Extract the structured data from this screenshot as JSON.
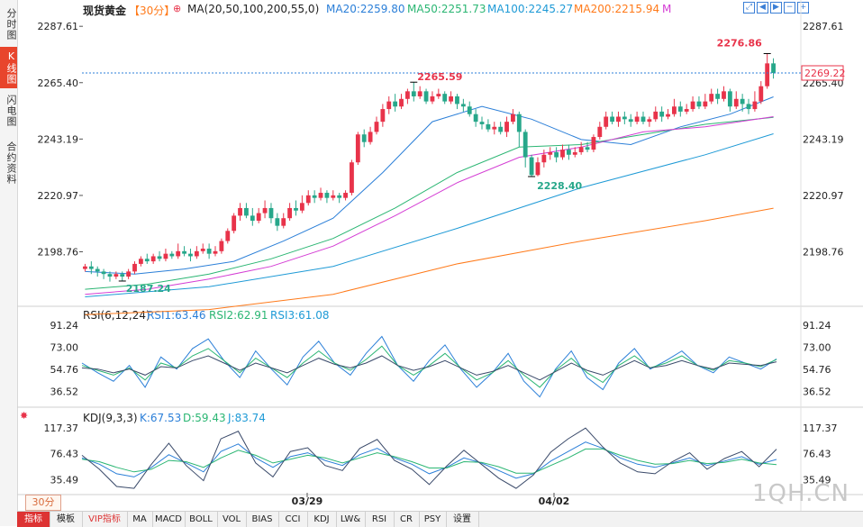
{
  "sidebar": {
    "tabs": [
      {
        "label": "分时图",
        "active": false
      },
      {
        "label": "K线图",
        "active": true
      },
      {
        "label": "闪电图",
        "active": false
      },
      {
        "label": "合约资料",
        "active": false
      }
    ]
  },
  "header": {
    "title": "现货黄金",
    "period": "【30分】",
    "ma_def": "MA(20,50,100,200,55,0)",
    "ma20": "MA20:2259.80",
    "ma50": "MA50:2251.73",
    "ma100": "MA100:2245.27",
    "ma200": "MA200:2215.94",
    "ma_tail": "M"
  },
  "rsi_header": {
    "title": "RSI(6,12,24)",
    "r1": "RSI1:63.46",
    "r2": "RSI2:62.91",
    "r3": "RSI3:61.08"
  },
  "kdj_header": {
    "title": "KDJ(9,3,3)",
    "k": "K:67.53",
    "d": "D:59.43",
    "j": "J:83.74"
  },
  "price_labels": {
    "high": "2276.86",
    "peak": "2265.59",
    "low1": "2187.24",
    "low2": "2228.40",
    "current": "2269.22"
  },
  "price_axis": [
    "2287.61",
    "2265.40",
    "2243.19",
    "2220.97",
    "2198.76"
  ],
  "rsi_axis": [
    "91.24",
    "73.00",
    "54.76",
    "36.52"
  ],
  "kdj_axis": [
    "117.37",
    "76.43",
    "35.49"
  ],
  "date_labels": [
    "03/29",
    "04/02"
  ],
  "period_button": "30分",
  "bottom_tabs": [
    "指标",
    "模板",
    "VIP指标",
    "MA",
    "MACD",
    "BOLL",
    "VOL",
    "BIAS",
    "CCI",
    "KDJ",
    "LW&",
    "RSI",
    "CR",
    "PSY",
    "设置"
  ],
  "watermark": "1QH.CN",
  "colors": {
    "up": "#e8334a",
    "down": "#27a78a",
    "ma20": "#2b7fd8",
    "ma50": "#2bb673",
    "ma100": "#1e9ad6",
    "ma200": "#ff7a1a",
    "magenta": "#d43dd4"
  },
  "chart_data": {
    "type": "candlestick",
    "instrument": "现货黄金",
    "interval": "30分",
    "ylim": [
      2178,
      2293
    ],
    "y_ticks": [
      2287.61,
      2265.4,
      2243.19,
      2220.97,
      2198.76
    ],
    "current_price": 2269.22,
    "annotations": [
      {
        "label": "2276.86",
        "value": 2276.86
      },
      {
        "label": "2265.59",
        "value": 2265.59
      },
      {
        "label": "2187.24",
        "value": 2187.24
      },
      {
        "label": "2228.40",
        "value": 2228.4
      }
    ],
    "x_labels": [
      "03/29",
      "04/02"
    ],
    "candles": [
      [
        2192,
        2193,
        2194,
        2191
      ],
      [
        2193,
        2192,
        2195,
        2190
      ],
      [
        2192,
        2191,
        2193,
        2189
      ],
      [
        2191,
        2190,
        2192,
        2188
      ],
      [
        2190,
        2189,
        2191,
        2187
      ],
      [
        2189,
        2190,
        2191,
        2188
      ],
      [
        2190,
        2189,
        2191,
        2187.24
      ],
      [
        2189,
        2191,
        2192,
        2188
      ],
      [
        2191,
        2194,
        2195,
        2190
      ],
      [
        2194,
        2196,
        2197,
        2193
      ],
      [
        2196,
        2195,
        2198,
        2194
      ],
      [
        2195,
        2197,
        2198,
        2194
      ],
      [
        2197,
        2196,
        2199,
        2195
      ],
      [
        2196,
        2198,
        2200,
        2195
      ],
      [
        2198,
        2197,
        2199,
        2196
      ],
      [
        2197,
        2199,
        2202,
        2196
      ],
      [
        2199,
        2198,
        2201,
        2197
      ],
      [
        2198,
        2197,
        2200,
        2195
      ],
      [
        2197,
        2199,
        2201,
        2196
      ],
      [
        2199,
        2200,
        2202,
        2198
      ],
      [
        2200,
        2198,
        2202,
        2196
      ],
      [
        2198,
        2199,
        2201,
        2197
      ],
      [
        2199,
        2203,
        2204,
        2198
      ],
      [
        2203,
        2207,
        2208,
        2202
      ],
      [
        2207,
        2213,
        2214,
        2206
      ],
      [
        2213,
        2216,
        2218,
        2211
      ],
      [
        2216,
        2213,
        2218,
        2212
      ],
      [
        2213,
        2211,
        2216,
        2209
      ],
      [
        2211,
        2214,
        2216,
        2210
      ],
      [
        2214,
        2216,
        2219,
        2212
      ],
      [
        2216,
        2212,
        2218,
        2210
      ],
      [
        2212,
        2209,
        2214,
        2207
      ],
      [
        2209,
        2212,
        2214,
        2208
      ],
      [
        2212,
        2216,
        2218,
        2211
      ],
      [
        2216,
        2215,
        2219,
        2213
      ],
      [
        2215,
        2218,
        2221,
        2214
      ],
      [
        2218,
        2221,
        2223,
        2217
      ],
      [
        2221,
        2220,
        2223,
        2218
      ],
      [
        2220,
        2222,
        2224,
        2219
      ],
      [
        2222,
        2220,
        2223,
        2218
      ],
      [
        2220,
        2221,
        2223,
        2219
      ],
      [
        2221,
        2220,
        2222,
        2218
      ],
      [
        2220,
        2222,
        2223,
        2219
      ],
      [
        2222,
        2234,
        2235,
        2221
      ],
      [
        2234,
        2245,
        2246,
        2233
      ],
      [
        2245,
        2242,
        2247,
        2240
      ],
      [
        2242,
        2246,
        2248,
        2241
      ],
      [
        2246,
        2250,
        2252,
        2245
      ],
      [
        2250,
        2255,
        2257,
        2248
      ],
      [
        2255,
        2258,
        2260,
        2253
      ],
      [
        2258,
        2256,
        2261,
        2254
      ],
      [
        2256,
        2259,
        2261,
        2255
      ],
      [
        2259,
        2262,
        2263,
        2257
      ],
      [
        2262,
        2260,
        2265.59,
        2258
      ],
      [
        2260,
        2262,
        2264,
        2259
      ],
      [
        2262,
        2258,
        2263,
        2257
      ],
      [
        2258,
        2260,
        2262,
        2257
      ],
      [
        2260,
        2261,
        2263,
        2259
      ],
      [
        2261,
        2258,
        2262,
        2257
      ],
      [
        2258,
        2260,
        2262,
        2257
      ],
      [
        2260,
        2257,
        2261,
        2255
      ],
      [
        2257,
        2256,
        2259,
        2254
      ],
      [
        2256,
        2253,
        2258,
        2252
      ],
      [
        2253,
        2250,
        2255,
        2248
      ],
      [
        2250,
        2249,
        2252,
        2247
      ],
      [
        2249,
        2247,
        2251,
        2246
      ],
      [
        2247,
        2248,
        2250,
        2245
      ],
      [
        2248,
        2246,
        2250,
        2245
      ],
      [
        2246,
        2250,
        2252,
        2244
      ],
      [
        2250,
        2253,
        2255,
        2249
      ],
      [
        2253,
        2246,
        2254,
        2240
      ],
      [
        2246,
        2236,
        2247,
        2232
      ],
      [
        2236,
        2229,
        2237,
        2228.4
      ],
      [
        2229,
        2234,
        2236,
        2228.5
      ],
      [
        2234,
        2237,
        2239,
        2232
      ],
      [
        2237,
        2238,
        2240,
        2235
      ],
      [
        2238,
        2236,
        2240,
        2234
      ],
      [
        2236,
        2239,
        2241,
        2235
      ],
      [
        2239,
        2237,
        2241,
        2235
      ],
      [
        2237,
        2238,
        2240,
        2236
      ],
      [
        2238,
        2240,
        2242,
        2237
      ],
      [
        2240,
        2239,
        2242,
        2238
      ],
      [
        2239,
        2244,
        2245,
        2238
      ],
      [
        2244,
        2248,
        2250,
        2243
      ],
      [
        2248,
        2252,
        2254,
        2247
      ],
      [
        2252,
        2250,
        2254,
        2249
      ],
      [
        2250,
        2252,
        2254,
        2248
      ],
      [
        2252,
        2251,
        2254,
        2249
      ],
      [
        2251,
        2250,
        2253,
        2248
      ],
      [
        2250,
        2252,
        2254,
        2249
      ],
      [
        2252,
        2250,
        2254,
        2249
      ],
      [
        2250,
        2251,
        2252,
        2248
      ],
      [
        2251,
        2254,
        2256,
        2250
      ],
      [
        2254,
        2252,
        2256,
        2250
      ],
      [
        2252,
        2253,
        2255,
        2251
      ],
      [
        2253,
        2256,
        2259,
        2252
      ],
      [
        2256,
        2254,
        2258,
        2252
      ],
      [
        2254,
        2255,
        2257,
        2253
      ],
      [
        2255,
        2258,
        2260,
        2254
      ],
      [
        2258,
        2256,
        2260,
        2255
      ],
      [
        2256,
        2258,
        2261,
        2255
      ],
      [
        2258,
        2261,
        2263,
        2257
      ],
      [
        2261,
        2259,
        2263,
        2257
      ],
      [
        2259,
        2262,
        2264,
        2258
      ],
      [
        2262,
        2256,
        2263,
        2254
      ],
      [
        2256,
        2259,
        2262,
        2255
      ],
      [
        2259,
        2257,
        2261,
        2254
      ],
      [
        2257,
        2255,
        2259,
        2253
      ],
      [
        2255,
        2258,
        2262,
        2254
      ],
      [
        2258,
        2264,
        2266,
        2257
      ],
      [
        2264,
        2273,
        2276.86,
        2263
      ],
      [
        2273,
        2269.22,
        2275,
        2267
      ]
    ],
    "ma_lines": [
      {
        "name": "MA20",
        "color": "#2b7fd8",
        "points": [
          [
            0,
            2191
          ],
          [
            8,
            2190
          ],
          [
            16,
            2192
          ],
          [
            24,
            2195
          ],
          [
            32,
            2203
          ],
          [
            40,
            2212
          ],
          [
            48,
            2230
          ],
          [
            56,
            2250
          ],
          [
            64,
            2256
          ],
          [
            72,
            2251
          ],
          [
            80,
            2243
          ],
          [
            88,
            2241
          ],
          [
            96,
            2248
          ],
          [
            104,
            2253
          ],
          [
            111,
            2259.8
          ]
        ]
      },
      {
        "name": "MA50",
        "color": "#2bb673",
        "points": [
          [
            0,
            2184
          ],
          [
            10,
            2186
          ],
          [
            20,
            2190
          ],
          [
            30,
            2196
          ],
          [
            40,
            2204
          ],
          [
            50,
            2216
          ],
          [
            60,
            2230
          ],
          [
            70,
            2240
          ],
          [
            80,
            2241
          ],
          [
            90,
            2245
          ],
          [
            100,
            2249
          ],
          [
            111,
            2251.73
          ]
        ]
      },
      {
        "name": "MA55",
        "color": "#d43dd4",
        "points": [
          [
            0,
            2182
          ],
          [
            10,
            2184
          ],
          [
            20,
            2188
          ],
          [
            30,
            2193
          ],
          [
            40,
            2201
          ],
          [
            50,
            2213
          ],
          [
            60,
            2226
          ],
          [
            70,
            2236
          ],
          [
            80,
            2240
          ],
          [
            90,
            2246
          ],
          [
            100,
            2248
          ],
          [
            111,
            2252
          ]
        ]
      },
      {
        "name": "MA100",
        "color": "#1e9ad6",
        "points": [
          [
            0,
            2181
          ],
          [
            20,
            2185
          ],
          [
            40,
            2193
          ],
          [
            60,
            2208
          ],
          [
            80,
            2224
          ],
          [
            100,
            2237
          ],
          [
            111,
            2245.27
          ]
        ]
      },
      {
        "name": "MA200",
        "color": "#ff7a1a",
        "points": [
          [
            0,
            2174
          ],
          [
            20,
            2176
          ],
          [
            40,
            2182
          ],
          [
            60,
            2194
          ],
          [
            80,
            2203
          ],
          [
            100,
            2211
          ],
          [
            111,
            2215.94
          ]
        ]
      }
    ],
    "rsi": {
      "ylim": [
        25,
        98
      ],
      "y_ticks": [
        91.24,
        73.0,
        54.76,
        36.52
      ],
      "series": [
        {
          "name": "RSI1",
          "color": "#2b7fd8",
          "values": [
            60,
            52,
            45,
            58,
            40,
            65,
            55,
            72,
            80,
            62,
            48,
            70,
            55,
            42,
            65,
            78,
            60,
            50,
            68,
            82,
            58,
            45,
            62,
            75,
            55,
            40,
            52,
            68,
            45,
            32,
            55,
            70,
            48,
            38,
            60,
            72,
            55,
            62,
            70,
            58,
            52,
            65,
            60,
            55,
            63.46
          ]
        },
        {
          "name": "RSI2",
          "color": "#2bb673",
          "values": [
            58,
            54,
            50,
            56,
            46,
            60,
            56,
            66,
            72,
            62,
            52,
            64,
            56,
            48,
            60,
            70,
            60,
            54,
            63,
            74,
            58,
            50,
            58,
            68,
            56,
            46,
            52,
            62,
            50,
            40,
            54,
            64,
            52,
            44,
            58,
            66,
            56,
            60,
            66,
            58,
            54,
            62,
            60,
            57,
            62.91
          ]
        },
        {
          "name": "RSI3",
          "color": "#3a4a6a",
          "values": [
            56,
            55,
            52,
            55,
            50,
            57,
            56,
            62,
            66,
            60,
            54,
            60,
            56,
            52,
            58,
            64,
            59,
            56,
            60,
            66,
            58,
            54,
            57,
            62,
            56,
            50,
            53,
            58,
            52,
            46,
            53,
            60,
            54,
            50,
            56,
            62,
            56,
            58,
            62,
            58,
            55,
            60,
            59,
            58,
            61.08
          ]
        }
      ]
    },
    "kdj": {
      "ylim": [
        15,
        130
      ],
      "y_ticks": [
        117.37,
        76.43,
        35.49
      ],
      "series": [
        {
          "name": "K",
          "color": "#2b7fd8",
          "values": [
            70,
            60,
            45,
            40,
            55,
            75,
            62,
            48,
            80,
            92,
            70,
            55,
            72,
            78,
            66,
            58,
            75,
            85,
            70,
            60,
            45,
            55,
            70,
            62,
            50,
            38,
            45,
            65,
            80,
            95,
            85,
            70,
            60,
            55,
            62,
            70,
            58,
            65,
            72,
            60,
            67.53
          ]
        },
        {
          "name": "D",
          "color": "#2bb673",
          "values": [
            68,
            64,
            55,
            48,
            52,
            66,
            64,
            55,
            70,
            82,
            74,
            62,
            68,
            74,
            70,
            62,
            70,
            78,
            72,
            64,
            54,
            54,
            64,
            63,
            56,
            46,
            46,
            58,
            70,
            84,
            84,
            74,
            66,
            60,
            61,
            66,
            61,
            63,
            68,
            62,
            59.43
          ]
        },
        {
          "name": "J",
          "color": "#3a4a6a",
          "values": [
            74,
            52,
            25,
            22,
            60,
            93,
            58,
            34,
            100,
            112,
            62,
            40,
            80,
            86,
            58,
            50,
            85,
            99,
            66,
            52,
            28,
            57,
            82,
            60,
            38,
            22,
            43,
            79,
            100,
            117,
            87,
            62,
            48,
            45,
            64,
            78,
            52,
            69,
            80,
            56,
            83.74
          ]
        }
      ]
    }
  }
}
